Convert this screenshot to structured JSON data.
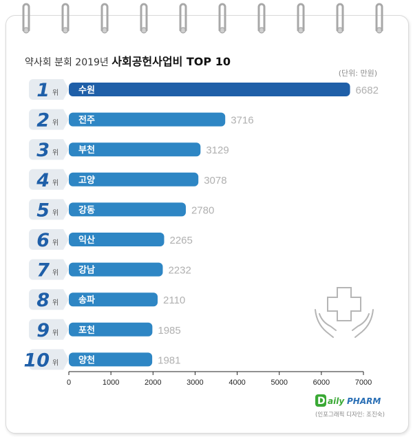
{
  "title": {
    "prefix": "약사회 분회 2019년 ",
    "main": "사회공헌사업비 TOP 10"
  },
  "unit_label": "(단위: 만원)",
  "rank_suffix": "위",
  "credit": "(인포그래픽 디자인: 조진숙)",
  "logo_text": "DailyPHARM",
  "colors": {
    "bar_top": "#1f5fa8",
    "bar": "#2e86c4",
    "badge": "#e6ebf0",
    "value": "#b0b0b0",
    "logo": "#3aa935"
  },
  "icons": [
    "spiral-ring-icon",
    "medical-cross-hands-icon"
  ],
  "chart_data": {
    "type": "bar",
    "orientation": "horizontal",
    "title": "약사회 분회 2019년 사회공헌사업비 TOP 10",
    "unit": "(단위: 만원)",
    "ranks": [
      "1",
      "2",
      "3",
      "4",
      "5",
      "6",
      "7",
      "8",
      "9",
      "10"
    ],
    "categories": [
      "수원",
      "전주",
      "부천",
      "고양",
      "강동",
      "익산",
      "강남",
      "송파",
      "포천",
      "양천"
    ],
    "values": [
      6682,
      3716,
      3129,
      3078,
      2780,
      2265,
      2232,
      2110,
      1985,
      1981
    ],
    "xlim": [
      0,
      7000
    ],
    "xticks": [
      0,
      1000,
      2000,
      3000,
      4000,
      5000,
      6000,
      7000
    ],
    "grid": false,
    "legend": "none"
  }
}
